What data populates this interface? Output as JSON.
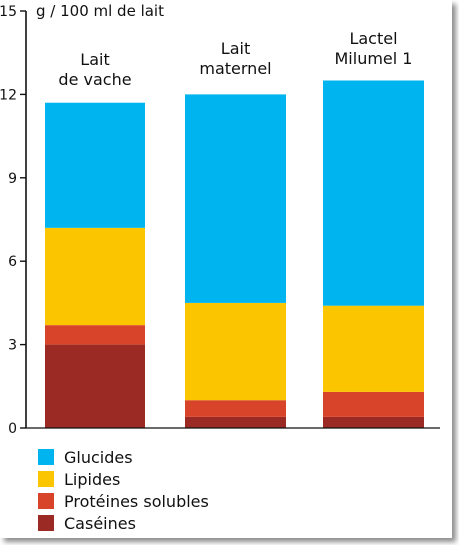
{
  "chart_data": {
    "type": "bar",
    "stacked": true,
    "ylabel": "g / 100 ml de lait",
    "ylim": [
      0,
      15
    ],
    "yticks": [
      0,
      3,
      6,
      9,
      12,
      15
    ],
    "categories": [
      [
        "Lait",
        "de vache"
      ],
      [
        "Lait",
        "maternel"
      ],
      [
        "Lactel",
        "Milumel 1"
      ]
    ],
    "series": [
      {
        "name": "Caséines",
        "color": "#9b2a24",
        "values": [
          3.0,
          0.4,
          0.4
        ]
      },
      {
        "name": "Protéines solubles",
        "color": "#d7442a",
        "values": [
          0.7,
          0.6,
          0.9
        ]
      },
      {
        "name": "Lipides",
        "color": "#fbc600",
        "values": [
          3.5,
          3.5,
          3.1
        ]
      },
      {
        "name": "Glucides",
        "color": "#00b5ef",
        "values": [
          4.5,
          7.5,
          8.1
        ]
      }
    ],
    "legend_order": [
      "Glucides",
      "Lipides",
      "Protéines solubles",
      "Caséines"
    ],
    "legend_position": "bottom-left",
    "grid": false
  }
}
